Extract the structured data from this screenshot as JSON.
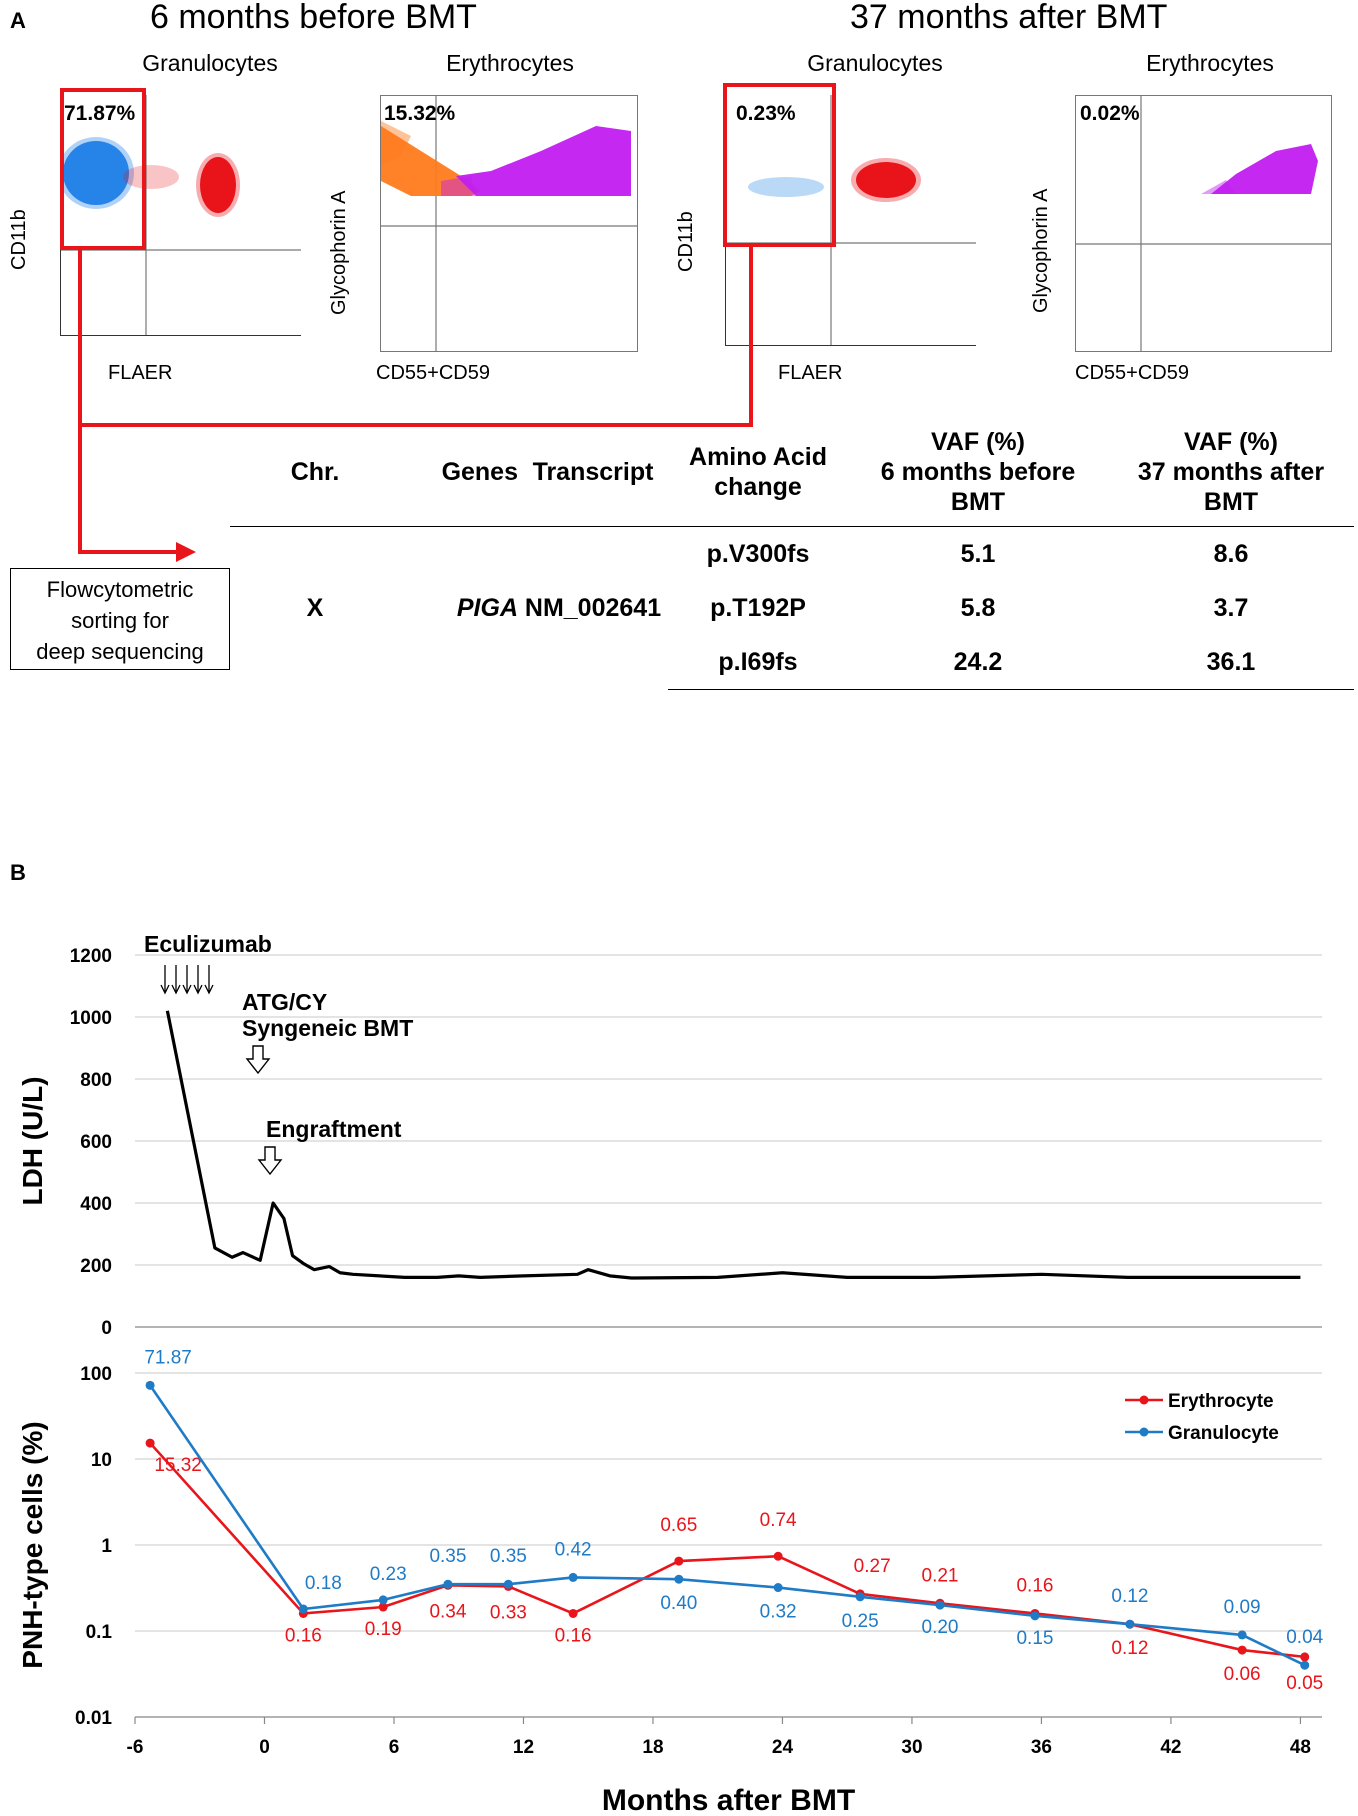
{
  "panel_a": {
    "letter": "A",
    "before_title": "6 months before BMT",
    "after_title": "37 months after BMT",
    "plots": [
      {
        "title": "Granulocytes",
        "x_label": "FLAER",
        "y_label": "CD11b",
        "percent": "71.87%"
      },
      {
        "title": "Erythrocytes",
        "x_label": "CD55+CD59",
        "y_label": "Glycophorin A",
        "percent": "15.32%"
      },
      {
        "title": "Granulocytes",
        "x_label": "FLAER",
        "y_label": "CD11b",
        "percent": "0.23%"
      },
      {
        "title": "Erythrocytes",
        "x_label": "CD55+CD59",
        "y_label": "Glycophorin A",
        "percent": "0.02%"
      }
    ],
    "sorting_label_lines": [
      "Flowcytometric",
      "sorting for",
      "deep sequencing"
    ],
    "table": {
      "headers": {
        "chr": "Chr.",
        "genes": "Genes",
        "transcript": "Transcript",
        "aa_line1": "Amino Acid",
        "aa_line2": "change",
        "vaf_before_line1": "VAF (%)",
        "vaf_before_line2": "6 months before",
        "vaf_before_line3": "BMT",
        "vaf_after_line1": "VAF (%)",
        "vaf_after_line2": "37 months after",
        "vaf_after_line3": "BMT"
      },
      "chr": "X",
      "gene": "PIGA",
      "transcript": "NM_002641",
      "rows": [
        {
          "aa": "p.V300fs",
          "before": "5.1",
          "after": "8.6"
        },
        {
          "aa": "p.T192P",
          "before": "5.8",
          "after": "3.7"
        },
        {
          "aa": "p.I69fs",
          "before": "24.2",
          "after": "36.1"
        }
      ]
    }
  },
  "panel_b": {
    "letter": "B",
    "annotations": {
      "eculizumab": "Eculizumab",
      "atg_line1": "ATG/CY",
      "atg_line2": "Syngeneic BMT",
      "engraftment": "Engraftment"
    },
    "x_label": "Months after BMT"
  },
  "chart_data": [
    {
      "type": "line",
      "ylabel": "LDH (U/L)",
      "xlabel": "",
      "xlim": [
        -6,
        49
      ],
      "ylim": [
        0,
        1200
      ],
      "yticks": [
        0,
        200,
        400,
        600,
        800,
        1000,
        1200
      ],
      "grid": true,
      "series": [
        {
          "name": "LDH",
          "color": "#000000",
          "x": [
            -4.5,
            -2.3,
            -1.5,
            -1.0,
            -0.2,
            0.4,
            0.9,
            1.3,
            1.8,
            2.3,
            3.0,
            3.5,
            4.1,
            6.5,
            8.0,
            9.0,
            10.0,
            12.0,
            14.5,
            15.0,
            16.0,
            17.0,
            21.0,
            24.0,
            27.0,
            31.0,
            36.0,
            40.0,
            48.0
          ],
          "y": [
            1020,
            255,
            225,
            240,
            215,
            400,
            350,
            230,
            205,
            185,
            195,
            175,
            170,
            160,
            160,
            165,
            160,
            165,
            170,
            185,
            165,
            158,
            160,
            175,
            160,
            160,
            170,
            160,
            160
          ]
        }
      ]
    },
    {
      "type": "line",
      "yscale": "log",
      "ylabel": "PNH-type cells (%)",
      "xlabel": "Months after BMT",
      "xlim": [
        -6,
        49
      ],
      "ylim": [
        0.01,
        100
      ],
      "yticks": [
        0.01,
        0.1,
        1,
        10,
        100
      ],
      "ytick_labels": [
        "0.01",
        "0.1",
        "1",
        "10",
        "100"
      ],
      "xticks": [
        -6,
        0,
        6,
        12,
        18,
        24,
        30,
        36,
        42,
        48
      ],
      "xtick_labels": [
        "-6",
        "0",
        "6",
        "12",
        "18",
        "24",
        "30",
        "36",
        "42",
        "48"
      ],
      "legend": "top-right",
      "series": [
        {
          "name": "Erythrocyte",
          "color": "#e8151b",
          "x": [
            -5.3,
            1.8,
            5.5,
            8.5,
            11.3,
            14.3,
            19.2,
            23.8,
            27.6,
            31.3,
            35.7,
            40.1,
            45.3,
            48.2
          ],
          "y": [
            15.32,
            0.16,
            0.19,
            0.34,
            0.33,
            0.16,
            0.65,
            0.74,
            0.27,
            0.21,
            0.16,
            0.12,
            0.06,
            0.05
          ],
          "labels": [
            "15.32",
            "0.16",
            "0.19",
            "0.34",
            "0.33",
            "0.16",
            "0.65",
            "0.74",
            "0.27",
            "0.21",
            "0.16",
            "0.12",
            "0.06",
            "0.05"
          ]
        },
        {
          "name": "Granulocyte",
          "color": "#1f7bc6",
          "x": [
            -5.3,
            1.8,
            5.5,
            8.5,
            11.3,
            14.3,
            19.2,
            23.8,
            27.6,
            31.3,
            35.7,
            40.1,
            45.3,
            48.2
          ],
          "y": [
            71.87,
            0.18,
            0.23,
            0.35,
            0.35,
            0.42,
            0.4,
            0.32,
            0.25,
            0.2,
            0.15,
            0.12,
            0.09,
            0.04
          ],
          "labels": [
            "71.87",
            "0.18",
            "0.23",
            "0.35",
            "0.35",
            "0.42",
            "0.40",
            "0.32",
            "0.25",
            "0.20",
            "0.15",
            "0.12",
            "0.09",
            "0.04"
          ]
        }
      ]
    }
  ]
}
